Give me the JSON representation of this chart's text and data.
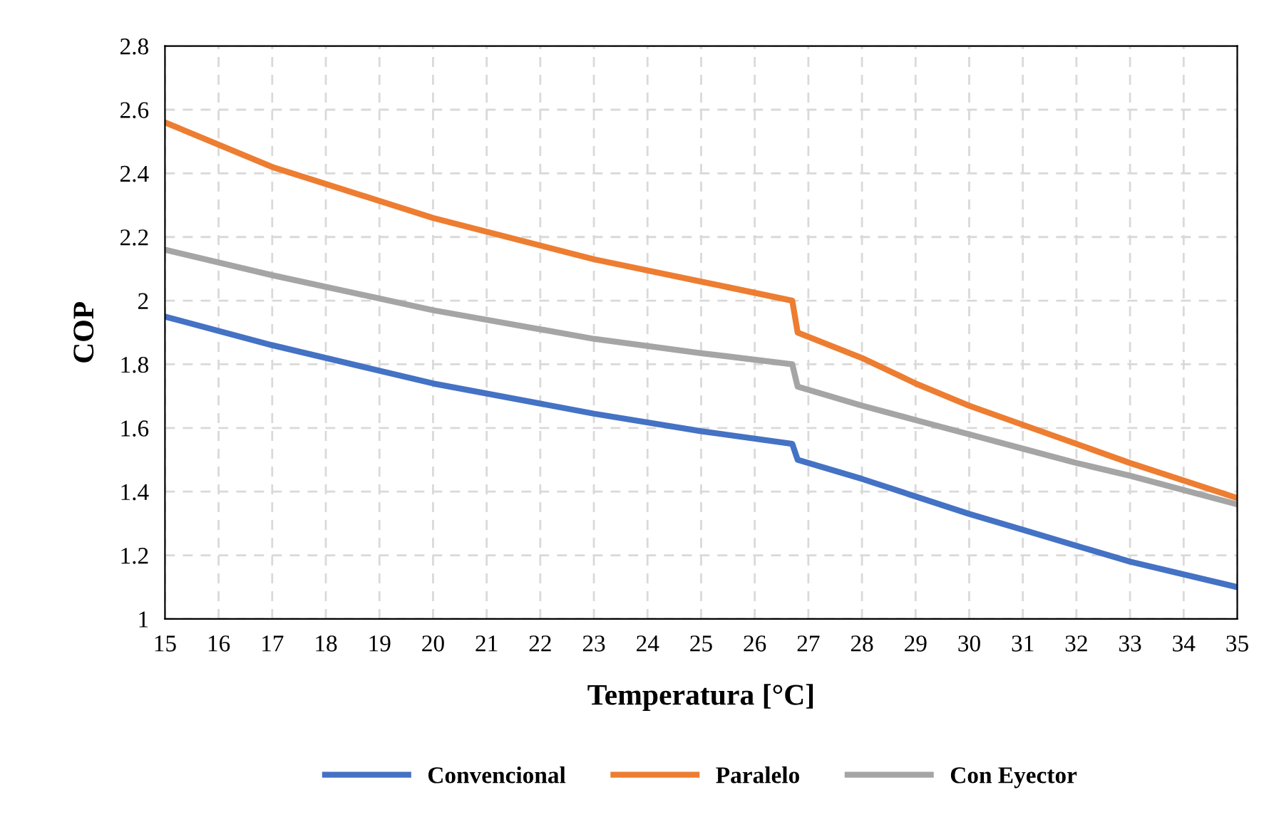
{
  "chart_data": {
    "type": "line",
    "xlabel": "Temperatura [°C]",
    "ylabel": "COP",
    "xlim": [
      15,
      35
    ],
    "xticks": [
      15,
      16,
      17,
      18,
      19,
      20,
      21,
      22,
      23,
      24,
      25,
      26,
      27,
      28,
      29,
      30,
      31,
      32,
      33,
      34,
      35
    ],
    "ylim": [
      1,
      2.8
    ],
    "yticks": [
      1,
      1.2,
      1.4,
      1.6,
      1.8,
      2,
      2.2,
      2.4,
      2.6,
      2.8
    ],
    "grid": true,
    "legend": "bottom",
    "marker": "none",
    "line_style": "solid",
    "x": [
      15,
      17,
      20,
      23,
      25,
      26.7,
      26.8,
      28,
      29,
      30,
      31,
      32,
      33,
      35
    ],
    "series": [
      {
        "name": "Convencional",
        "color": "#4472c4",
        "values": [
          1.95,
          1.86,
          1.74,
          1.645,
          1.59,
          1.55,
          1.5,
          1.44,
          1.385,
          1.33,
          1.28,
          1.23,
          1.18,
          1.1
        ]
      },
      {
        "name": "Paralelo",
        "color": "#ed7d31",
        "values": [
          2.56,
          2.42,
          2.26,
          2.13,
          2.06,
          2.0,
          1.9,
          1.82,
          1.74,
          1.67,
          1.61,
          1.55,
          1.49,
          1.38
        ]
      },
      {
        "name": "Con Eyector",
        "color": "#a5a5a5",
        "values": [
          2.16,
          2.08,
          1.97,
          1.88,
          1.835,
          1.8,
          1.73,
          1.67,
          1.625,
          1.58,
          1.535,
          1.49,
          1.45,
          1.36
        ]
      }
    ]
  }
}
